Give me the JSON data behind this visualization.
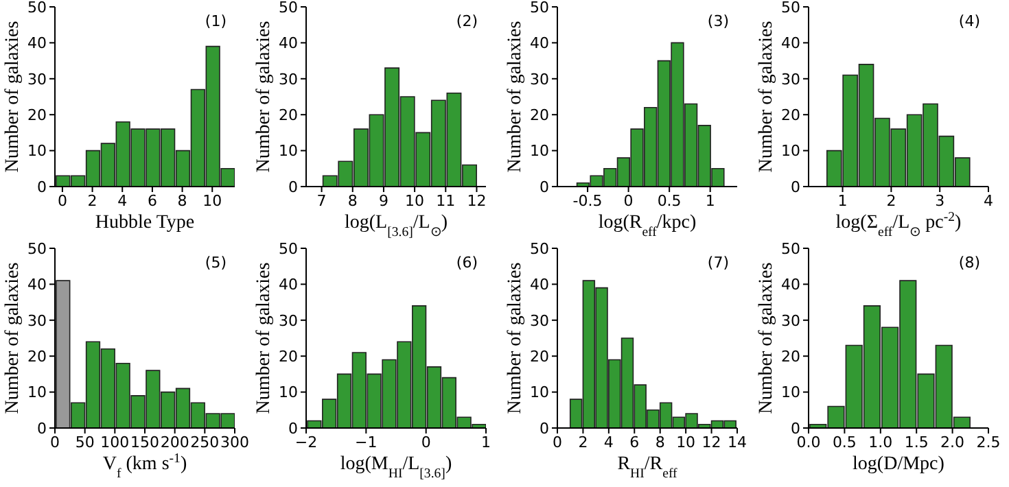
{
  "chart_data": [
    {
      "type": "histogram",
      "xlabel": "Hubble Type",
      "ylabel": "Number of galaxies",
      "annotations": [
        "(1)"
      ],
      "color": "#339933",
      "bins": [
        -0.5,
        0.5,
        1.5,
        2.5,
        3.5,
        4.5,
        5.5,
        6.5,
        7.5,
        8.5,
        9.5,
        10.5,
        11.5
      ],
      "values": [
        3,
        3,
        10,
        12,
        18,
        16,
        16,
        16,
        10,
        27,
        39,
        5
      ],
      "xlim": [
        -0.5,
        11.5
      ],
      "xticks": [
        0,
        2,
        4,
        6,
        8,
        10
      ],
      "ylim": [
        0,
        50
      ],
      "yticks": [
        0,
        10,
        20,
        30,
        40,
        50
      ]
    },
    {
      "type": "histogram",
      "xlabel": "log(L$_{[3.6]}$/L$_{⊙}$)",
      "ylabel": "Number of galaxies",
      "annotations": [
        "(2)"
      ],
      "color": "#339933",
      "bins": [
        7,
        7.5,
        8,
        8.5,
        9,
        9.5,
        10,
        10.5,
        11,
        11.5,
        12
      ],
      "values": [
        3,
        7,
        16,
        20,
        33,
        25,
        15,
        24,
        26,
        6
      ],
      "xlim": [
        6.5,
        12.3
      ],
      "xticks": [
        7,
        8,
        9,
        10,
        11,
        12
      ],
      "ylim": [
        0,
        50
      ],
      "yticks": [
        0,
        10,
        20,
        30,
        40,
        50
      ]
    },
    {
      "type": "histogram",
      "xlabel": "log(R$_{eff}$/kpc)",
      "ylabel": "Number of galaxies",
      "annotations": [
        "(3)"
      ],
      "color": "#339933",
      "bins": [
        -0.63,
        -0.465,
        -0.3,
        -0.135,
        0.03,
        0.195,
        0.36,
        0.525,
        0.69,
        0.855,
        1.02,
        1.185
      ],
      "values": [
        1,
        3,
        5,
        8,
        16,
        22,
        35,
        40,
        23,
        17,
        5
      ],
      "xlim": [
        -0.87,
        1.33
      ],
      "xticks": [
        -0.5,
        0.0,
        0.5,
        1.0
      ],
      "ylim": [
        0,
        50
      ],
      "yticks": [
        0,
        10,
        20,
        30,
        40,
        50
      ]
    },
    {
      "type": "histogram",
      "xlabel": "log(Σ$_{eff}$/L$_{⊙}$ pc$^{-2}$)",
      "ylabel": "Number of galaxies",
      "annotations": [
        "(4)"
      ],
      "color": "#339933",
      "bins": [
        0.65,
        0.98,
        1.31,
        1.64,
        1.97,
        2.3,
        2.63,
        2.96,
        3.29,
        3.62
      ],
      "values": [
        10,
        31,
        34,
        19,
        16,
        20,
        23,
        14,
        8
      ],
      "xlim": [
        0.3,
        4
      ],
      "xticks": [
        1,
        2,
        3,
        4
      ],
      "ylim": [
        0,
        50
      ],
      "yticks": [
        0,
        10,
        20,
        30,
        40,
        50
      ]
    },
    {
      "type": "histogram",
      "xlabel": "V$_{f}$ (km s$^{-1}$)",
      "ylabel": "Number of galaxies",
      "annotations": [
        "(5)"
      ],
      "colors": [
        "#999999",
        "#339933",
        "#339933",
        "#339933",
        "#339933",
        "#339933",
        "#339933",
        "#339933",
        "#339933",
        "#339933",
        "#339933",
        "#339933"
      ],
      "bins": [
        0,
        25,
        50,
        75,
        100,
        125,
        150,
        175,
        200,
        225,
        250,
        275,
        300
      ],
      "values": [
        41,
        7,
        24,
        22,
        18,
        9,
        16,
        10,
        11,
        7,
        4,
        4
      ],
      "xlim": [
        0,
        300
      ],
      "xticks": [
        0,
        50,
        100,
        150,
        200,
        250,
        300
      ],
      "ylim": [
        0,
        50
      ],
      "yticks": [
        0,
        10,
        20,
        30,
        40,
        50
      ]
    },
    {
      "type": "histogram",
      "xlabel": "log(M$_{HI}$/L$_{[3.6]}$)",
      "ylabel": "Number of galaxies",
      "annotations": [
        "(6)"
      ],
      "color": "#339933",
      "bins": [
        -2,
        -1.75,
        -1.5,
        -1.25,
        -1,
        -0.75,
        -0.5,
        -0.25,
        0,
        0.25,
        0.5,
        0.75,
        1
      ],
      "values": [
        2,
        8,
        15,
        21,
        15,
        19,
        24,
        34,
        17,
        14,
        3,
        1
      ],
      "xlim": [
        -2,
        1
      ],
      "xticks": [
        {
          "value": -2,
          "label": "−2"
        },
        {
          "value": -1,
          "label": "−1"
        },
        0,
        1
      ],
      "ylim": [
        0,
        50
      ],
      "yticks": [
        0,
        10,
        20,
        30,
        40,
        50
      ]
    },
    {
      "type": "histogram",
      "xlabel": "R$_{HI}$/R$_{eff}$",
      "ylabel": "Number of galaxies",
      "annotations": [
        "(7)"
      ],
      "color": "#339933",
      "bins": [
        1,
        2,
        3,
        4,
        5,
        6,
        7,
        8,
        9,
        10,
        11,
        12,
        13,
        14
      ],
      "values": [
        8,
        41,
        39,
        19,
        25,
        12,
        5,
        7,
        3,
        4,
        1,
        2,
        2
      ],
      "xlim": [
        0,
        14
      ],
      "xticks": [
        0,
        2,
        4,
        6,
        8,
        10,
        12,
        14
      ],
      "ylim": [
        0,
        50
      ],
      "yticks": [
        0,
        10,
        20,
        30,
        40,
        50
      ]
    },
    {
      "type": "histogram",
      "xlabel": "log(D/Mpc)",
      "ylabel": "Number of galaxies",
      "annotations": [
        "(8)"
      ],
      "color": "#339933",
      "bins": [
        0,
        0.25,
        0.5,
        0.75,
        1,
        1.25,
        1.5,
        1.75,
        2,
        2.25
      ],
      "values": [
        1,
        6,
        23,
        34,
        28,
        41,
        15,
        23,
        3
      ],
      "xlim": [
        0,
        2.5
      ],
      "xticks": [
        {
          "value": 0,
          "label": "0.0"
        },
        0.5,
        {
          "value": 1,
          "label": "1.0"
        },
        1.5,
        {
          "value": 2,
          "label": "2.0"
        },
        2.5
      ],
      "ylim": [
        0,
        50
      ],
      "yticks": [
        0,
        10,
        20,
        30,
        40,
        50
      ]
    }
  ]
}
